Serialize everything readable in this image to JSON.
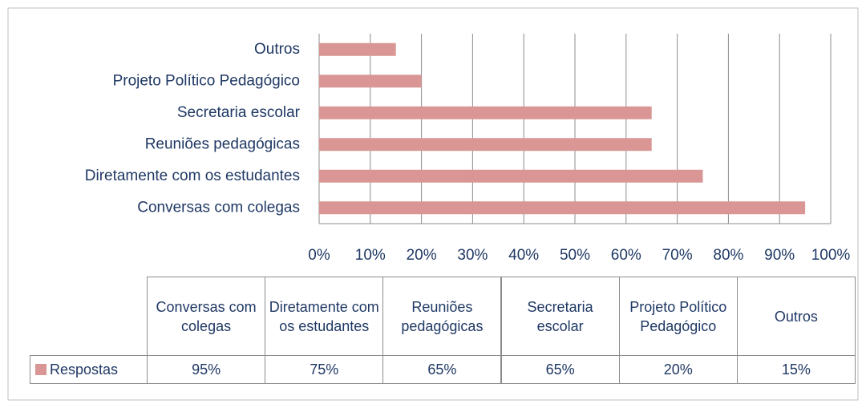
{
  "chart_data": {
    "type": "bar",
    "orientation": "horizontal",
    "categories": [
      "Conversas com colegas",
      "Diretamente com os estudantes",
      "Reuniões pedagógicas",
      "Secretaria escolar",
      "Projeto Político Pedagógico",
      "Outros"
    ],
    "series": [
      {
        "name": "Respostas",
        "color": "#d99694",
        "values": [
          95,
          75,
          65,
          65,
          20,
          15
        ],
        "value_labels": [
          "95%",
          "75%",
          "65%",
          "65%",
          "20%",
          "15%"
        ]
      }
    ],
    "xlim": [
      0,
      100
    ],
    "xticks": [
      {
        "value": 0,
        "label": "0%"
      },
      {
        "value": 10,
        "label": "10%"
      },
      {
        "value": 20,
        "label": "20%"
      },
      {
        "value": 30,
        "label": "30%"
      },
      {
        "value": 40,
        "label": "40%"
      },
      {
        "value": 50,
        "label": "50%"
      },
      {
        "value": 60,
        "label": "60%"
      },
      {
        "value": 70,
        "label": "70%"
      },
      {
        "value": 80,
        "label": "80%"
      },
      {
        "value": 90,
        "label": "90%"
      },
      {
        "value": 100,
        "label": "100%"
      }
    ],
    "grid": true,
    "data_table": true
  }
}
